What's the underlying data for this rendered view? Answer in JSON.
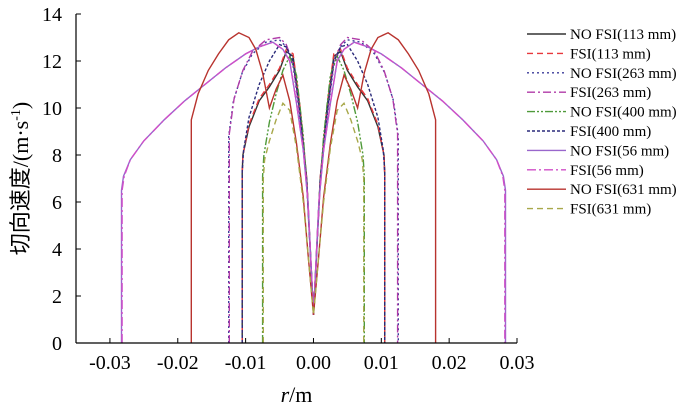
{
  "chart_data": {
    "type": "line",
    "xlabel": "r/m",
    "ylabel": "切向速度/(m·s⁻¹)",
    "ylabel_parts": {
      "main": "切向速度/(m·s",
      "exp": "-1",
      "close": ")"
    },
    "xlim": [
      -0.035,
      0.03
    ],
    "ylim": [
      0,
      14
    ],
    "xticks": [
      "-0.03",
      "-0.02",
      "-0.01",
      "0.00",
      "0.01",
      "0.02",
      "0.03"
    ],
    "yticks": [
      "0",
      "2",
      "4",
      "6",
      "8",
      "10",
      "12",
      "14"
    ],
    "grid": false,
    "legend_position": "right",
    "series": [
      {
        "name": "NO FSI(113 mm)",
        "color": "#333333",
        "dash": "",
        "points": [
          [
            -0.0105,
            0
          ],
          [
            -0.0105,
            7.2
          ],
          [
            -0.0104,
            8.0
          ],
          [
            -0.0095,
            9.2
          ],
          [
            -0.008,
            10.3
          ],
          [
            -0.0065,
            10.9
          ],
          [
            -0.005,
            11.6
          ],
          [
            -0.004,
            12.4
          ],
          [
            -0.003,
            12.2
          ],
          [
            -0.002,
            10.0
          ],
          [
            -0.001,
            7.0
          ],
          [
            0,
            1.2
          ],
          [
            0.001,
            7.0
          ],
          [
            0.002,
            10.0
          ],
          [
            0.003,
            12.2
          ],
          [
            0.004,
            12.4
          ],
          [
            0.005,
            11.6
          ],
          [
            0.0065,
            10.9
          ],
          [
            0.008,
            10.3
          ],
          [
            0.0095,
            9.2
          ],
          [
            0.0104,
            8.0
          ],
          [
            0.0105,
            7.2
          ],
          [
            0.0105,
            0
          ]
        ]
      },
      {
        "name": "FSI(113 mm)",
        "color": "#e8383d",
        "dash": "6,4",
        "points": [
          [
            -0.0105,
            0
          ],
          [
            -0.0105,
            7.2
          ],
          [
            -0.0104,
            8.0
          ],
          [
            -0.0095,
            9.3
          ],
          [
            -0.008,
            10.4
          ],
          [
            -0.0065,
            11.0
          ],
          [
            -0.005,
            11.7
          ],
          [
            -0.004,
            12.5
          ],
          [
            -0.003,
            12.3
          ],
          [
            -0.002,
            10.1
          ],
          [
            -0.001,
            7.0
          ],
          [
            0,
            1.2
          ],
          [
            0.001,
            7.0
          ],
          [
            0.002,
            10.1
          ],
          [
            0.003,
            12.3
          ],
          [
            0.004,
            12.5
          ],
          [
            0.005,
            11.7
          ],
          [
            0.0065,
            11.0
          ],
          [
            0.008,
            10.4
          ],
          [
            0.0095,
            9.3
          ],
          [
            0.0104,
            8.0
          ],
          [
            0.0105,
            7.2
          ],
          [
            0.0105,
            0
          ]
        ]
      },
      {
        "name": "NO FSI(263 mm)",
        "color": "#3b3b9a",
        "dash": "2,3",
        "points": [
          [
            -0.0125,
            0
          ],
          [
            -0.0125,
            8.8
          ],
          [
            -0.0118,
            10.3
          ],
          [
            -0.0105,
            11.5
          ],
          [
            -0.009,
            12.3
          ],
          [
            -0.007,
            12.8
          ],
          [
            -0.005,
            12.9
          ],
          [
            -0.004,
            12.6
          ],
          [
            -0.003,
            11.8
          ],
          [
            -0.002,
            9.6
          ],
          [
            -0.001,
            6.8
          ],
          [
            0,
            1.2
          ],
          [
            0.001,
            6.8
          ],
          [
            0.002,
            9.6
          ],
          [
            0.003,
            11.8
          ],
          [
            0.004,
            12.6
          ],
          [
            0.005,
            12.9
          ],
          [
            0.007,
            12.8
          ],
          [
            0.009,
            12.3
          ],
          [
            0.0105,
            11.5
          ],
          [
            0.0118,
            10.3
          ],
          [
            0.0125,
            8.8
          ],
          [
            0.0125,
            0
          ]
        ]
      },
      {
        "name": "FSI(263 mm)",
        "color": "#b03aa8",
        "dash": "8,3,2,3",
        "points": [
          [
            -0.0124,
            0
          ],
          [
            -0.0124,
            8.9
          ],
          [
            -0.0117,
            10.4
          ],
          [
            -0.0104,
            11.6
          ],
          [
            -0.009,
            12.4
          ],
          [
            -0.007,
            12.9
          ],
          [
            -0.005,
            13.0
          ],
          [
            -0.004,
            12.7
          ],
          [
            -0.003,
            11.9
          ],
          [
            -0.002,
            9.7
          ],
          [
            -0.001,
            6.8
          ],
          [
            0,
            1.2
          ],
          [
            0.001,
            6.8
          ],
          [
            0.002,
            9.7
          ],
          [
            0.003,
            11.9
          ],
          [
            0.004,
            12.7
          ],
          [
            0.005,
            13.0
          ],
          [
            0.007,
            12.9
          ],
          [
            0.009,
            12.4
          ],
          [
            0.0104,
            11.6
          ],
          [
            0.0117,
            10.4
          ],
          [
            0.0124,
            8.9
          ],
          [
            0.0124,
            0
          ]
        ]
      },
      {
        "name": "NO FSI(400 mm)",
        "color": "#4f9a3a",
        "dash": "8,2,2,2,2,2",
        "points": [
          [
            -0.0075,
            0
          ],
          [
            -0.0075,
            7.1
          ],
          [
            -0.0073,
            8.0
          ],
          [
            -0.0065,
            9.4
          ],
          [
            -0.0055,
            10.6
          ],
          [
            -0.0045,
            11.6
          ],
          [
            -0.0035,
            12.2
          ],
          [
            -0.0025,
            11.4
          ],
          [
            -0.0015,
            8.8
          ],
          [
            -0.0008,
            6.0
          ],
          [
            0,
            1.2
          ],
          [
            0.0008,
            6.0
          ],
          [
            0.0015,
            8.8
          ],
          [
            0.0025,
            11.4
          ],
          [
            0.0035,
            12.2
          ],
          [
            0.0045,
            11.6
          ],
          [
            0.0055,
            10.6
          ],
          [
            0.0065,
            9.4
          ],
          [
            0.0073,
            8.0
          ],
          [
            0.0075,
            7.1
          ],
          [
            0.0075,
            0
          ]
        ]
      },
      {
        "name": "FSI(400 mm)",
        "color": "#2a2a7a",
        "dash": "3,2",
        "points": [
          [
            -0.0105,
            0
          ],
          [
            -0.0105,
            7.3
          ],
          [
            -0.0103,
            8.2
          ],
          [
            -0.0095,
            9.6
          ],
          [
            -0.008,
            11.0
          ],
          [
            -0.0065,
            12.0
          ],
          [
            -0.005,
            12.7
          ],
          [
            -0.004,
            12.6
          ],
          [
            -0.003,
            12.0
          ],
          [
            -0.002,
            9.8
          ],
          [
            -0.001,
            6.9
          ],
          [
            0,
            1.2
          ],
          [
            0.001,
            6.9
          ],
          [
            0.002,
            9.8
          ],
          [
            0.003,
            12.0
          ],
          [
            0.004,
            12.6
          ],
          [
            0.005,
            12.7
          ],
          [
            0.0065,
            12.0
          ],
          [
            0.008,
            11.0
          ],
          [
            0.0095,
            9.6
          ],
          [
            0.0103,
            8.2
          ],
          [
            0.0105,
            7.3
          ],
          [
            0.0105,
            0
          ]
        ]
      },
      {
        "name": "NO FSI(56 mm)",
        "color": "#9966cc",
        "dash": "",
        "points": [
          [
            -0.0283,
            0
          ],
          [
            -0.0283,
            6.5
          ],
          [
            -0.028,
            7.1
          ],
          [
            -0.027,
            7.8
          ],
          [
            -0.025,
            8.6
          ],
          [
            -0.022,
            9.5
          ],
          [
            -0.019,
            10.3
          ],
          [
            -0.016,
            11.0
          ],
          [
            -0.013,
            11.7
          ],
          [
            -0.01,
            12.3
          ],
          [
            -0.008,
            12.6
          ],
          [
            -0.006,
            12.8
          ],
          [
            -0.0045,
            12.5
          ],
          [
            -0.0035,
            12.0
          ],
          [
            -0.0025,
            10.2
          ],
          [
            -0.0015,
            8.2
          ],
          [
            -0.0008,
            6.0
          ],
          [
            0,
            1.2
          ],
          [
            0.0008,
            6.0
          ],
          [
            0.0015,
            8.2
          ],
          [
            0.0025,
            10.2
          ],
          [
            0.0035,
            12.0
          ],
          [
            0.0045,
            12.5
          ],
          [
            0.006,
            12.8
          ],
          [
            0.008,
            12.6
          ],
          [
            0.01,
            12.3
          ],
          [
            0.013,
            11.7
          ],
          [
            0.016,
            11.0
          ],
          [
            0.019,
            10.3
          ],
          [
            0.022,
            9.5
          ],
          [
            0.025,
            8.6
          ],
          [
            0.027,
            7.8
          ],
          [
            0.028,
            7.1
          ],
          [
            0.0283,
            6.5
          ],
          [
            0.0283,
            0
          ]
        ]
      },
      {
        "name": "FSI(56 mm)",
        "color": "#d04fc8",
        "dash": "9,3,2,3",
        "points": [
          [
            -0.0282,
            0
          ],
          [
            -0.0282,
            6.5
          ],
          [
            -0.0279,
            7.1
          ],
          [
            -0.027,
            7.8
          ],
          [
            -0.025,
            8.6
          ],
          [
            -0.022,
            9.5
          ],
          [
            -0.019,
            10.3
          ],
          [
            -0.016,
            11.0
          ],
          [
            -0.013,
            11.7
          ],
          [
            -0.01,
            12.3
          ],
          [
            -0.008,
            12.6
          ],
          [
            -0.006,
            12.8
          ],
          [
            -0.0045,
            12.5
          ],
          [
            -0.0035,
            12.0
          ],
          [
            -0.0025,
            10.2
          ],
          [
            -0.0015,
            8.2
          ],
          [
            -0.0008,
            6.0
          ],
          [
            0,
            1.2
          ],
          [
            0.0008,
            6.0
          ],
          [
            0.0015,
            8.2
          ],
          [
            0.0025,
            10.2
          ],
          [
            0.0035,
            12.0
          ],
          [
            0.0045,
            12.5
          ],
          [
            0.006,
            12.8
          ],
          [
            0.008,
            12.6
          ],
          [
            0.01,
            12.3
          ],
          [
            0.013,
            11.7
          ],
          [
            0.016,
            11.0
          ],
          [
            0.019,
            10.3
          ],
          [
            0.022,
            9.5
          ],
          [
            0.025,
            8.6
          ],
          [
            0.027,
            7.8
          ],
          [
            0.0279,
            7.1
          ],
          [
            0.0282,
            6.5
          ],
          [
            0.0282,
            0
          ]
        ]
      },
      {
        "name": "NO FSI(631 mm)",
        "color": "#b8332e",
        "dash": "",
        "points": [
          [
            -0.018,
            0
          ],
          [
            -0.018,
            9.5
          ],
          [
            -0.017,
            10.6
          ],
          [
            -0.0155,
            11.6
          ],
          [
            -0.014,
            12.3
          ],
          [
            -0.0125,
            12.9
          ],
          [
            -0.011,
            13.2
          ],
          [
            -0.0095,
            13.0
          ],
          [
            -0.0085,
            12.5
          ],
          [
            -0.0075,
            11.5
          ],
          [
            -0.0065,
            10.0
          ],
          [
            -0.0055,
            10.8
          ],
          [
            -0.0045,
            11.4
          ],
          [
            -0.0035,
            10.3
          ],
          [
            -0.0025,
            8.5
          ],
          [
            -0.0015,
            6.2
          ],
          [
            -0.0008,
            3.8
          ],
          [
            0,
            1.2
          ],
          [
            0.0008,
            3.8
          ],
          [
            0.0015,
            6.2
          ],
          [
            0.0025,
            8.5
          ],
          [
            0.0035,
            10.3
          ],
          [
            0.0045,
            11.4
          ],
          [
            0.0055,
            10.8
          ],
          [
            0.0065,
            10.0
          ],
          [
            0.0075,
            11.5
          ],
          [
            0.0085,
            12.5
          ],
          [
            0.0095,
            13.0
          ],
          [
            0.011,
            13.2
          ],
          [
            0.0125,
            12.9
          ],
          [
            0.014,
            12.3
          ],
          [
            0.0155,
            11.6
          ],
          [
            0.017,
            10.6
          ],
          [
            0.018,
            9.5
          ],
          [
            0.018,
            0
          ]
        ]
      },
      {
        "name": "FSI(631 mm)",
        "color": "#a8a84a",
        "dash": "6,4",
        "points": [
          [
            -0.0074,
            0
          ],
          [
            -0.0074,
            7.0
          ],
          [
            -0.0072,
            7.8
          ],
          [
            -0.0065,
            8.6
          ],
          [
            -0.0055,
            9.5
          ],
          [
            -0.0045,
            10.2
          ],
          [
            -0.0035,
            9.9
          ],
          [
            -0.0025,
            8.3
          ],
          [
            -0.0015,
            6.0
          ],
          [
            -0.0008,
            3.8
          ],
          [
            0,
            1.2
          ],
          [
            0.0008,
            3.8
          ],
          [
            0.0015,
            6.0
          ],
          [
            0.0025,
            8.3
          ],
          [
            0.0035,
            9.9
          ],
          [
            0.0045,
            10.2
          ],
          [
            0.0055,
            9.5
          ],
          [
            0.0065,
            8.6
          ],
          [
            0.0072,
            7.8
          ],
          [
            0.0074,
            7.0
          ],
          [
            0.0074,
            0
          ]
        ]
      }
    ]
  }
}
